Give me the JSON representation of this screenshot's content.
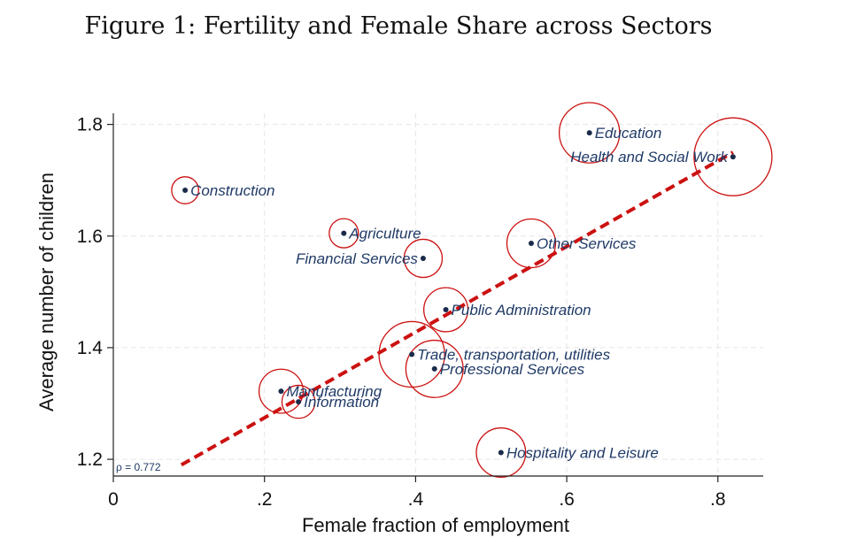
{
  "figure_title": "Figure 1: Fertility and Female Share across Sectors",
  "colors": {
    "fit_line": "#cc1111",
    "bubble": "#cc1111",
    "point": "#1a2a4a",
    "label": "#1f3a66",
    "grid": "#e6e6e6"
  },
  "chart_data": {
    "type": "scatter",
    "xlabel": "Female fraction of employment",
    "ylabel": "Average number of children",
    "xlim": [
      0,
      0.86
    ],
    "ylim": [
      1.17,
      1.82
    ],
    "xticks": [
      0,
      0.2,
      0.4,
      0.6,
      0.8
    ],
    "xtick_labels": [
      "0",
      ".2",
      ".4",
      ".6",
      ".8"
    ],
    "yticks": [
      1.2,
      1.4,
      1.6,
      1.8
    ],
    "ytick_labels": [
      "1.2",
      "1.4",
      "1.6",
      "1.8"
    ],
    "grid": true,
    "annotation": "ρ = 0.772",
    "fit_line": {
      "x": [
        0.09,
        0.82
      ],
      "y": [
        1.19,
        1.75
      ]
    },
    "points": [
      {
        "name": "Education",
        "x": 0.63,
        "y": 1.785,
        "weight": 0.6,
        "label_pos": "right"
      },
      {
        "name": "Health and Social Work",
        "x": 0.82,
        "y": 1.742,
        "weight": 1.0,
        "label_pos": "left"
      },
      {
        "name": "Construction",
        "x": 0.095,
        "y": 1.682,
        "weight": 0.12,
        "label_pos": "right"
      },
      {
        "name": "Agriculture",
        "x": 0.305,
        "y": 1.605,
        "weight": 0.14,
        "label_pos": "right"
      },
      {
        "name": "Financial Services",
        "x": 0.41,
        "y": 1.56,
        "weight": 0.24,
        "label_pos": "left"
      },
      {
        "name": "Other Services",
        "x": 0.553,
        "y": 1.587,
        "weight": 0.39,
        "label_pos": "right"
      },
      {
        "name": "Public Administration",
        "x": 0.44,
        "y": 1.468,
        "weight": 0.32,
        "label_pos": "right"
      },
      {
        "name": "Trade, transportation, utilities",
        "x": 0.395,
        "y": 1.388,
        "weight": 0.71,
        "label_pos": "right"
      },
      {
        "name": "Professional Services",
        "x": 0.425,
        "y": 1.362,
        "weight": 0.54,
        "label_pos": "right"
      },
      {
        "name": "Manufacturing",
        "x": 0.222,
        "y": 1.322,
        "weight": 0.32,
        "label_pos": "right"
      },
      {
        "name": "Information",
        "x": 0.245,
        "y": 1.303,
        "weight": 0.18,
        "label_pos": "right"
      },
      {
        "name": "Hospitality and Leisure",
        "x": 0.513,
        "y": 1.212,
        "weight": 0.4,
        "label_pos": "right"
      }
    ]
  }
}
